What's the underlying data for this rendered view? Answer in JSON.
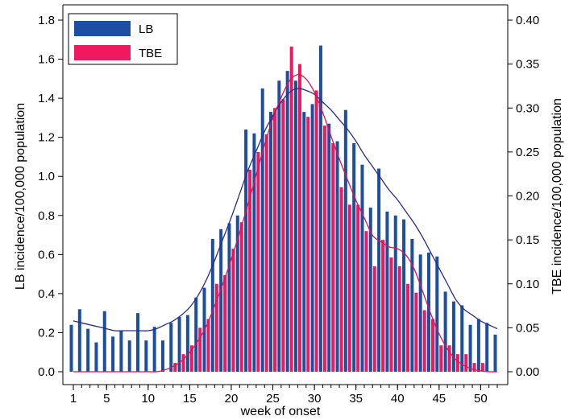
{
  "chart_data": {
    "type": "bar",
    "title": "",
    "xlabel": "week of onset",
    "ylabel_left": "LB incidence/100,000 population",
    "ylabel_right": "TBE incidence/100,000 population",
    "x_ticks": [
      1,
      5,
      10,
      15,
      20,
      25,
      30,
      35,
      40,
      45,
      50
    ],
    "ylim_left": [
      0,
      1.8
    ],
    "ylim_right": [
      0,
      0.4
    ],
    "yticks_left": [
      "0.0",
      "0.2",
      "0.4",
      "0.6",
      "0.8",
      "1.0",
      "1.2",
      "1.4",
      "1.6",
      "1.8"
    ],
    "yticks_right": [
      "0.00",
      "0.05",
      "0.10",
      "0.15",
      "0.20",
      "0.25",
      "0.30",
      "0.35",
      "0.40"
    ],
    "legend_position": "top-left",
    "grid": false,
    "weeks": [
      1,
      2,
      3,
      4,
      5,
      6,
      7,
      8,
      9,
      10,
      11,
      12,
      13,
      14,
      15,
      16,
      17,
      18,
      19,
      20,
      21,
      22,
      23,
      24,
      25,
      26,
      27,
      28,
      29,
      30,
      31,
      32,
      33,
      34,
      35,
      36,
      37,
      38,
      39,
      40,
      41,
      42,
      43,
      44,
      45,
      46,
      47,
      48,
      49,
      50,
      51,
      52
    ],
    "series": [
      {
        "name": "LB",
        "axis": "left",
        "color": "#1c4fa0",
        "values": [
          0.24,
          0.32,
          0.22,
          0.15,
          0.31,
          0.18,
          0.21,
          0.16,
          0.3,
          0.16,
          0.23,
          0.16,
          0.25,
          0.28,
          0.29,
          0.38,
          0.43,
          0.68,
          0.73,
          0.76,
          0.8,
          1.24,
          1.22,
          1.45,
          1.33,
          1.49,
          1.54,
          1.49,
          1.33,
          1.37,
          1.67,
          1.27,
          1.18,
          1.34,
          1.17,
          1.06,
          0.84,
          1.04,
          0.82,
          0.8,
          0.78,
          0.68,
          0.6,
          0.61,
          0.59,
          0.41,
          0.36,
          0.34,
          0.24,
          0.27,
          0.25,
          0.19
        ]
      },
      {
        "name": "TBE",
        "axis": "right",
        "color": "#f0185f",
        "values": [
          0,
          0,
          0,
          0,
          0,
          0,
          0,
          0,
          0,
          0,
          0,
          0,
          0.01,
          0.02,
          0.03,
          0.05,
          0.06,
          0.1,
          0.11,
          0.14,
          0.17,
          0.23,
          0.25,
          0.27,
          0.3,
          0.31,
          0.37,
          0.35,
          0.29,
          0.32,
          0.28,
          0.26,
          0.21,
          0.19,
          0.19,
          0.16,
          0.12,
          0.15,
          0.13,
          0.12,
          0.1,
          0.09,
          0.07,
          0.06,
          0.03,
          0.03,
          0.02,
          0.02,
          0.01,
          0.01,
          0,
          0
        ]
      }
    ],
    "smoothed_lines": [
      {
        "name": "LB",
        "axis": "left",
        "color": "#2a2a8a",
        "values": [
          0.26,
          0.25,
          0.24,
          0.23,
          0.22,
          0.21,
          0.21,
          0.21,
          0.21,
          0.21,
          0.22,
          0.24,
          0.26,
          0.29,
          0.33,
          0.39,
          0.47,
          0.57,
          0.68,
          0.79,
          0.91,
          1.03,
          1.13,
          1.23,
          1.31,
          1.38,
          1.43,
          1.45,
          1.44,
          1.42,
          1.38,
          1.34,
          1.29,
          1.24,
          1.18,
          1.11,
          1.05,
          0.99,
          0.93,
          0.88,
          0.82,
          0.76,
          0.69,
          0.61,
          0.53,
          0.45,
          0.37,
          0.32,
          0.29,
          0.26,
          0.24,
          0.22
        ]
      },
      {
        "name": "TBE",
        "axis": "right",
        "color": "#e0144f",
        "values": [
          0,
          0,
          0,
          0,
          0,
          0,
          0,
          0,
          0,
          0,
          0,
          0.002,
          0.006,
          0.012,
          0.022,
          0.035,
          0.052,
          0.075,
          0.1,
          0.128,
          0.158,
          0.19,
          0.224,
          0.258,
          0.288,
          0.312,
          0.331,
          0.338,
          0.333,
          0.318,
          0.295,
          0.268,
          0.242,
          0.218,
          0.195,
          0.175,
          0.155,
          0.148,
          0.142,
          0.14,
          0.133,
          0.117,
          0.092,
          0.066,
          0.043,
          0.026,
          0.014,
          0.007,
          0.003,
          0.001,
          0,
          0
        ]
      }
    ]
  }
}
